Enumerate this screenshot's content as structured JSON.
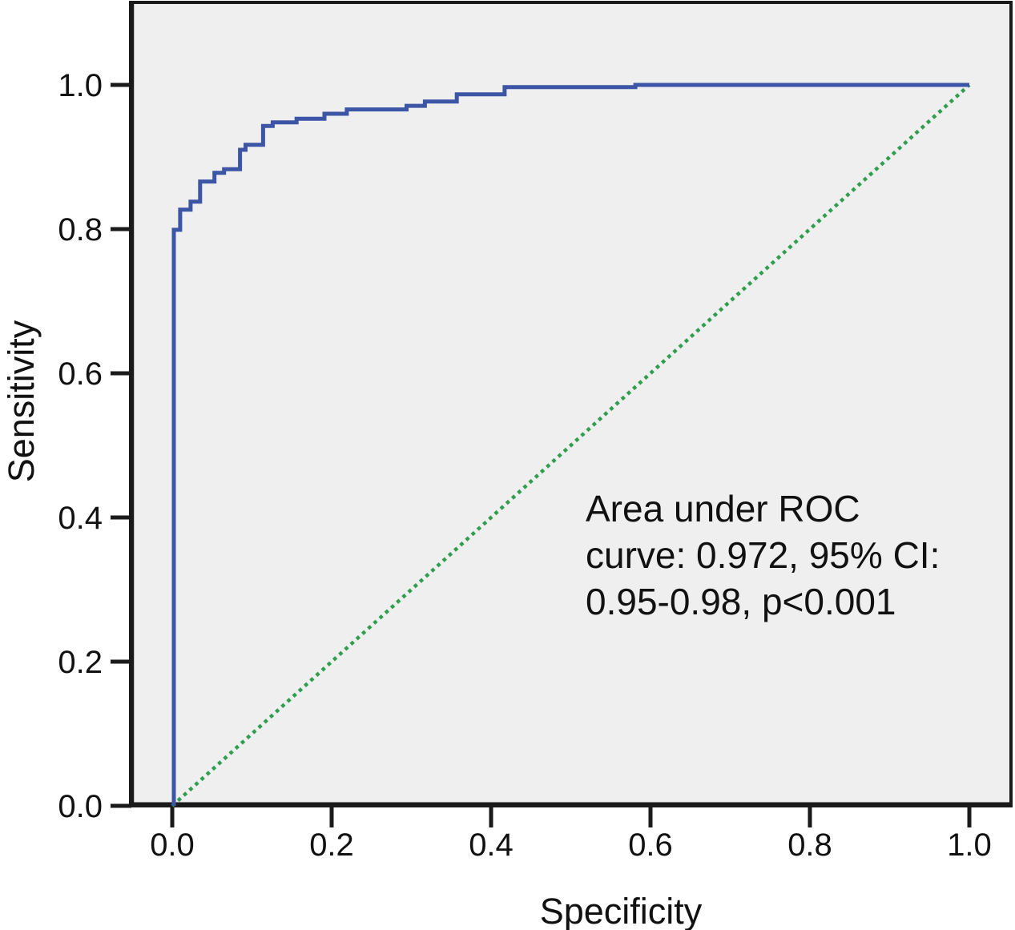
{
  "chart_data": {
    "type": "line",
    "title": "",
    "xlabel": "Specificity",
    "ylabel": "Sensitivity",
    "xlim": [
      0.0,
      1.0
    ],
    "ylim": [
      0.0,
      1.0
    ],
    "x_ticks": [
      "0.0",
      "0.2",
      "0.4",
      "0.6",
      "0.8",
      "1.0"
    ],
    "y_ticks": [
      "0.0",
      "0.2",
      "0.4",
      "0.6",
      "0.8",
      "1.0"
    ],
    "grid": false,
    "legend_position": "none",
    "plot_background": "#efeff0",
    "colors": {
      "frame": "#1a1a1a",
      "tick_text": "#111111",
      "roc_curve": "#3d55a5",
      "reference_line": "#2f9e4e"
    },
    "annotation_lines": [
      "Area under ROC",
      "curve: 0.972, 95% CI:",
      "0.95-0.98, p<0.001"
    ],
    "annotation_text": "Area under ROC curve: 0.972, 95% CI: 0.95-0.98, p<0.001",
    "auc": 0.972,
    "ci_95": [
      0.95,
      0.98
    ],
    "p_value": "p<0.001",
    "series": [
      {
        "name": "ROC curve",
        "style": "solid-step",
        "color": "#3d55a5",
        "line_width": 5,
        "points": [
          [
            0.002,
            0.0
          ],
          [
            0.002,
            0.799
          ],
          [
            0.01,
            0.799
          ],
          [
            0.01,
            0.827
          ],
          [
            0.023,
            0.827
          ],
          [
            0.023,
            0.838
          ],
          [
            0.035,
            0.838
          ],
          [
            0.035,
            0.866
          ],
          [
            0.053,
            0.866
          ],
          [
            0.053,
            0.878
          ],
          [
            0.065,
            0.878
          ],
          [
            0.065,
            0.883
          ],
          [
            0.085,
            0.883
          ],
          [
            0.085,
            0.91
          ],
          [
            0.092,
            0.91
          ],
          [
            0.092,
            0.917
          ],
          [
            0.114,
            0.917
          ],
          [
            0.114,
            0.943
          ],
          [
            0.126,
            0.943
          ],
          [
            0.126,
            0.948
          ],
          [
            0.156,
            0.948
          ],
          [
            0.156,
            0.953
          ],
          [
            0.191,
            0.953
          ],
          [
            0.191,
            0.96
          ],
          [
            0.219,
            0.96
          ],
          [
            0.219,
            0.966
          ],
          [
            0.294,
            0.966
          ],
          [
            0.294,
            0.971
          ],
          [
            0.317,
            0.971
          ],
          [
            0.317,
            0.977
          ],
          [
            0.357,
            0.977
          ],
          [
            0.357,
            0.987
          ],
          [
            0.417,
            0.987
          ],
          [
            0.417,
            0.997
          ],
          [
            0.581,
            0.997
          ],
          [
            0.581,
            1.0
          ],
          [
            1.0,
            1.0
          ]
        ]
      },
      {
        "name": "Reference diagonal",
        "style": "dotted",
        "color": "#2f9e4e",
        "line_width": 4.5,
        "points": [
          [
            0.0,
            0.0
          ],
          [
            1.0,
            1.0
          ]
        ]
      }
    ]
  }
}
